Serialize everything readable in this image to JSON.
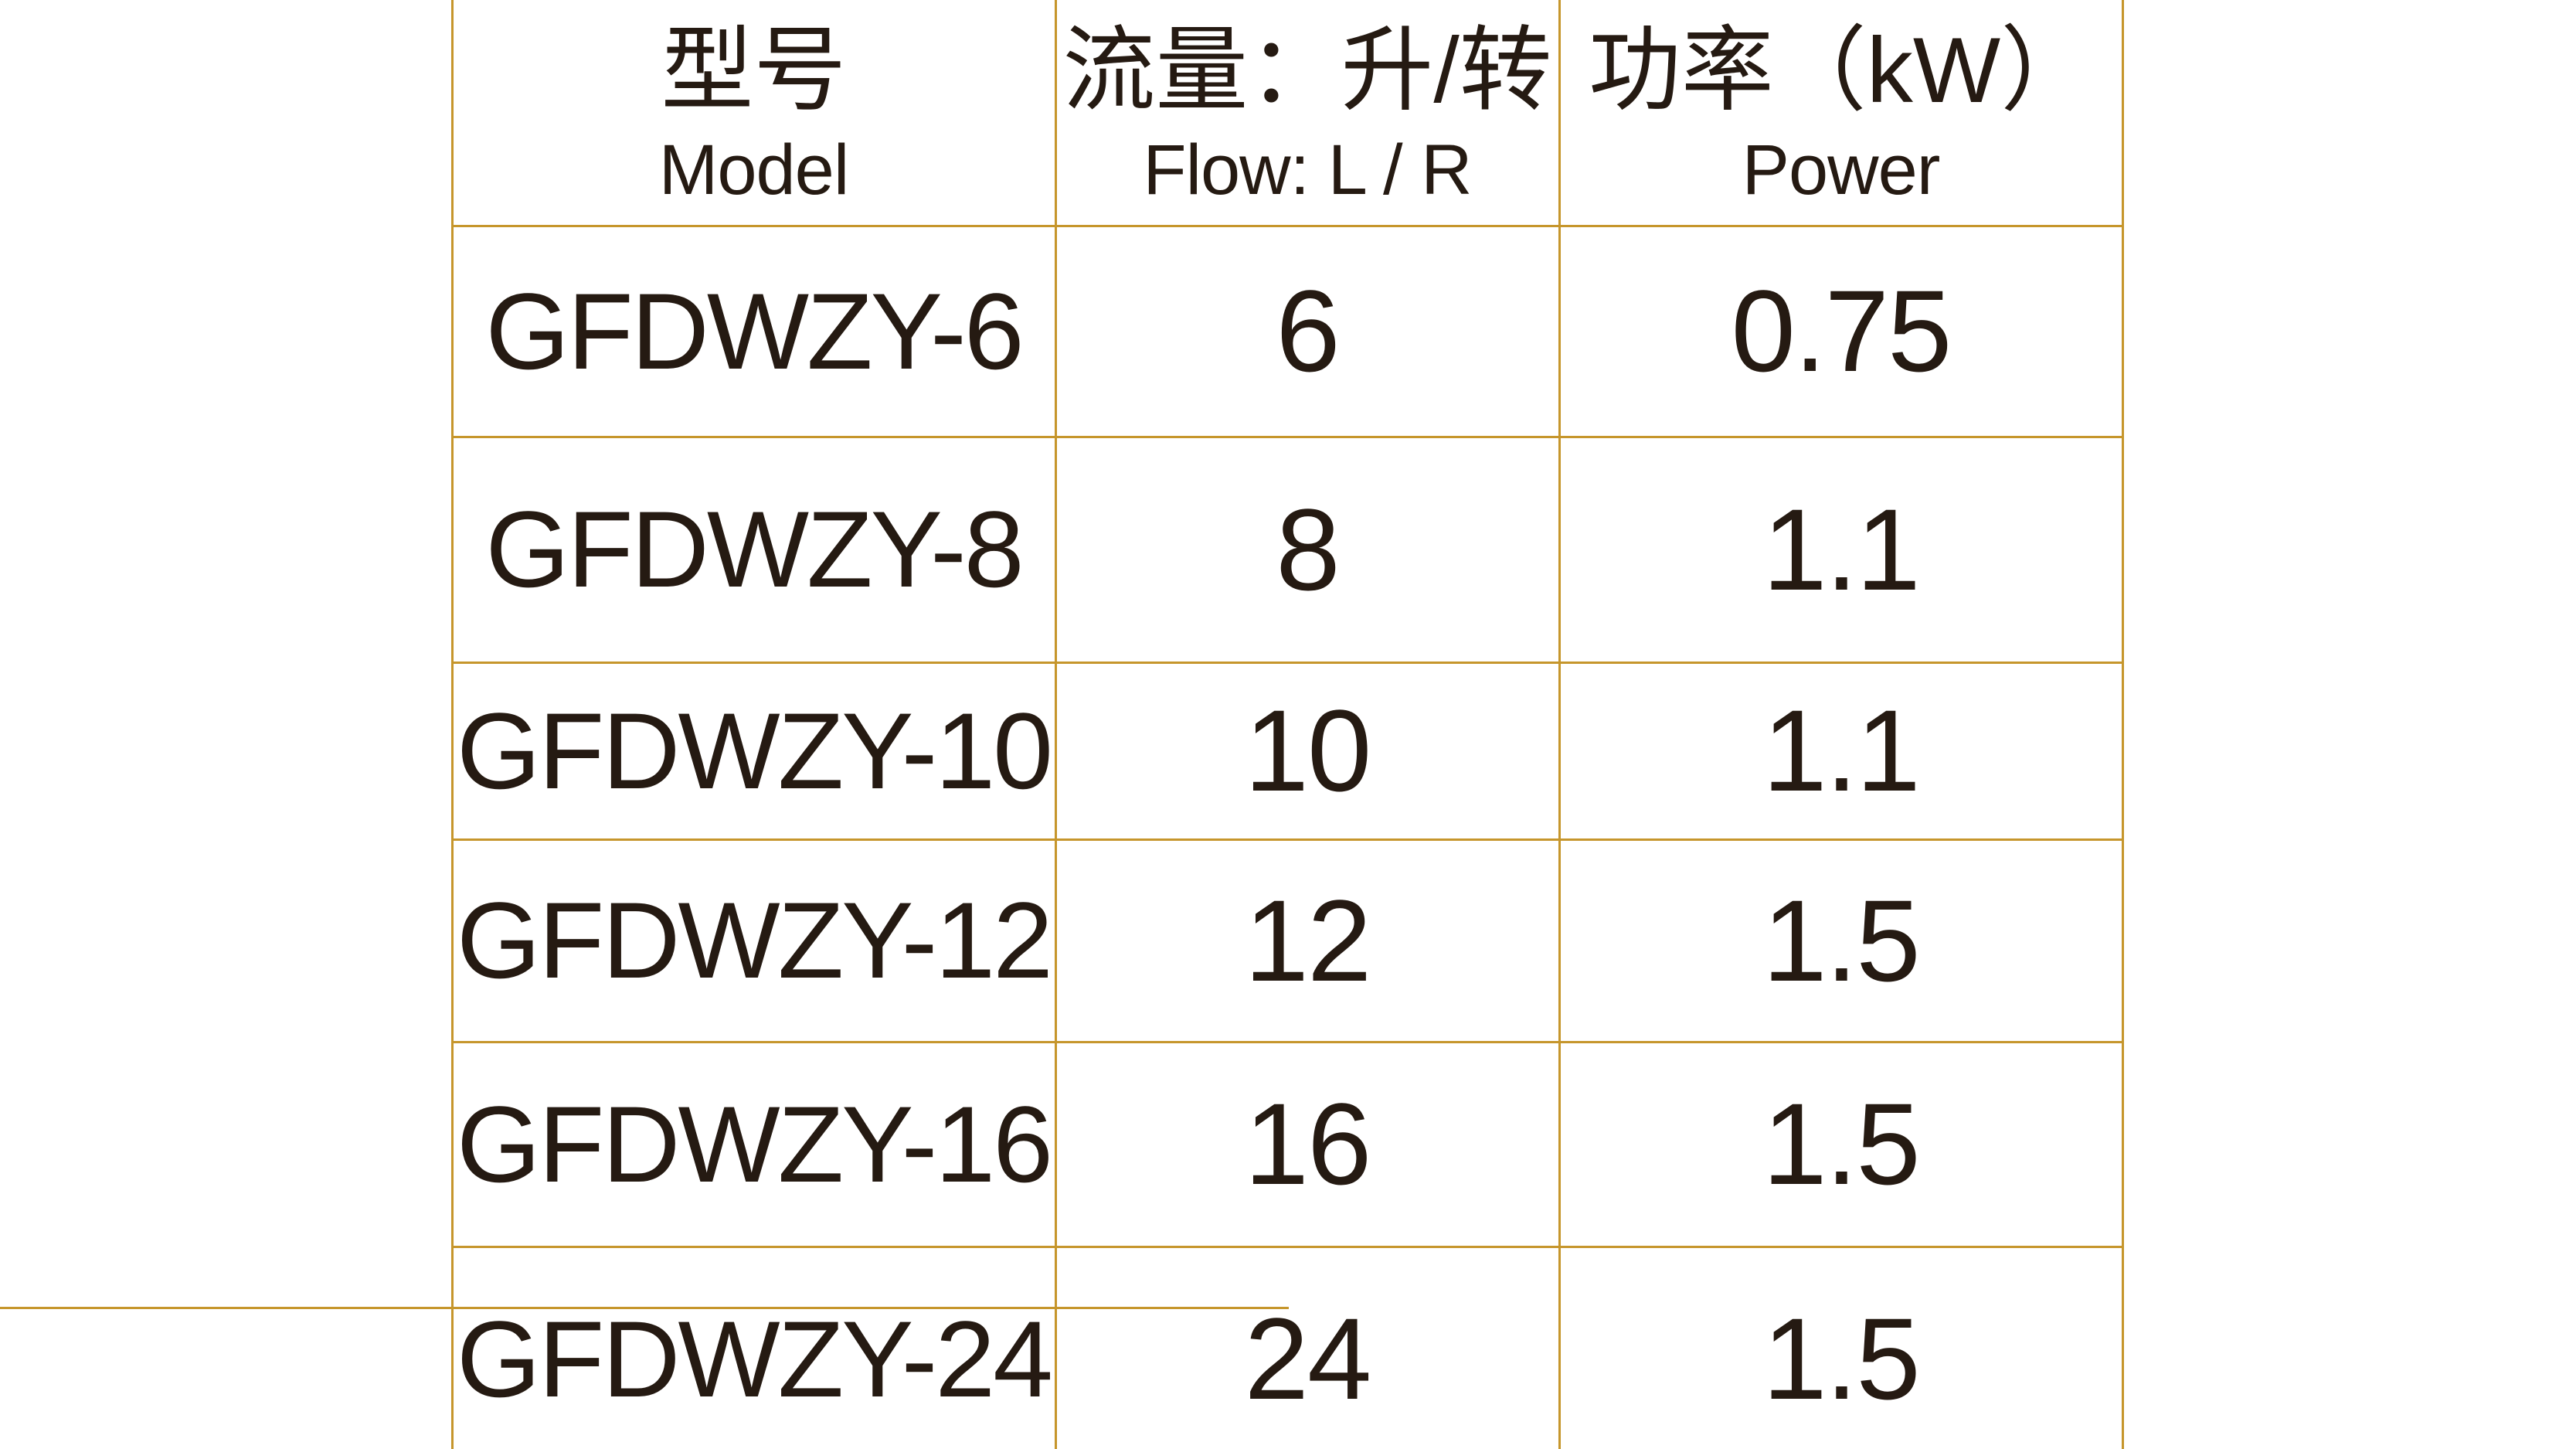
{
  "colors": {
    "grid_border": "#c6962c",
    "text": "#251a12",
    "background": "#ffffff"
  },
  "table": {
    "header": {
      "columns": [
        {
          "zh": "型号",
          "en": "Model"
        },
        {
          "zh": "流量：升/转",
          "en": "Flow: L / R"
        },
        {
          "zh": "功率（kW）",
          "en": "Power"
        }
      ]
    },
    "rows": [
      {
        "model": "GFDWZY-6",
        "flow": "6",
        "power": "0.75"
      },
      {
        "model": "GFDWZY-8",
        "flow": "8",
        "power": "1.1"
      },
      {
        "model": "GFDWZY-10",
        "flow": "10",
        "power": "1.1"
      },
      {
        "model": "GFDWZY-12",
        "flow": "12",
        "power": "1.5"
      },
      {
        "model": "GFDWZY-16",
        "flow": "16",
        "power": "1.5"
      },
      {
        "model": "GFDWZY-24",
        "flow": "24",
        "power": "1.5"
      }
    ]
  }
}
